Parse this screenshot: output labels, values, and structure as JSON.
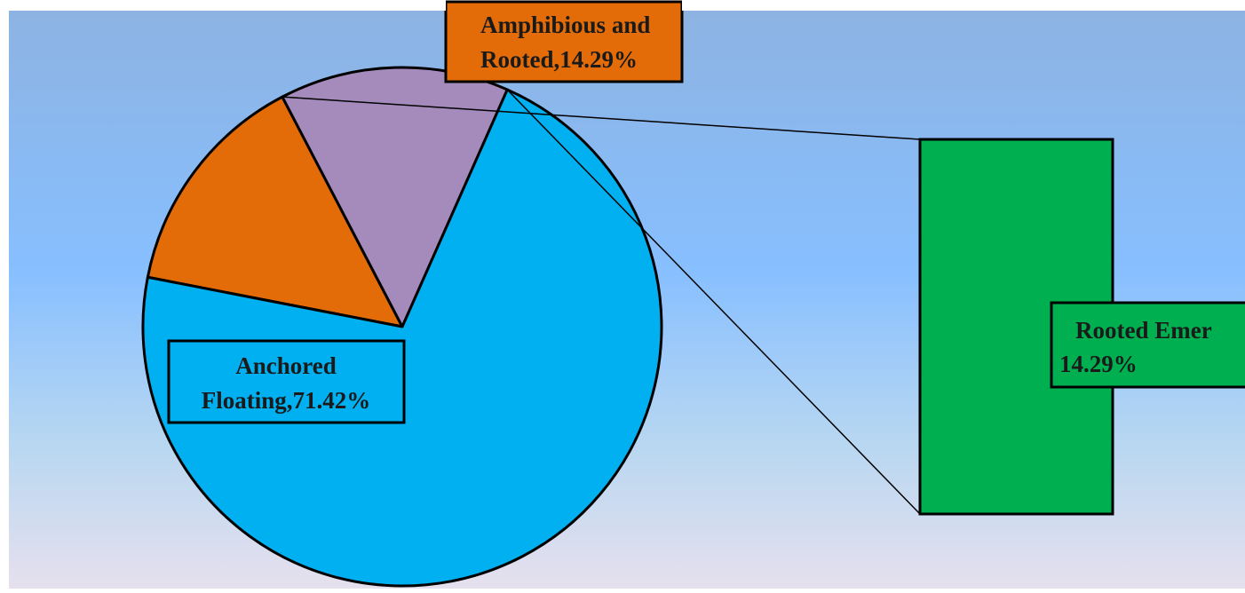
{
  "chart_data": {
    "type": "pie",
    "variant": "bar-of-pie",
    "slices": [
      {
        "label_lines": [
          "Amphibious and",
          "Rooted,14.29%"
        ],
        "value": 14.29,
        "color": "#e36c09"
      },
      {
        "label_lines": [
          "Rooted Emer",
          "14.29%"
        ],
        "value": 14.29,
        "color": "#a58bbc",
        "exploded_to_bar": true,
        "bar_color": "#00b050"
      },
      {
        "label_lines": [
          "Anchored",
          "Floating,71.42%"
        ],
        "value": 71.42,
        "color": "#00b0f0"
      }
    ],
    "background_gradient": [
      "#8db3e2",
      "#87bfff",
      "#b8d7f1",
      "#e6e0ee"
    ],
    "legend": "none",
    "grid": false
  }
}
